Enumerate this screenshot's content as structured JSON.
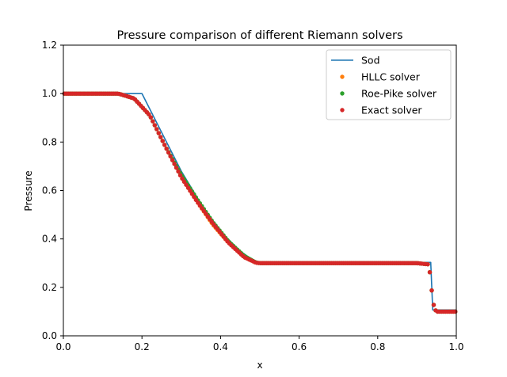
{
  "chart_data": {
    "type": "line",
    "title": "Pressure comparison of different Riemann solvers",
    "xlabel": "x",
    "ylabel": "Pressure",
    "xlim": [
      0.0,
      1.0
    ],
    "ylim": [
      0.0,
      1.2
    ],
    "xticks": [
      "0.0",
      "0.2",
      "0.4",
      "0.6",
      "0.8",
      "1.0"
    ],
    "yticks": [
      "0.0",
      "0.2",
      "0.4",
      "0.6",
      "0.8",
      "1.0",
      "1.2"
    ],
    "grid": false,
    "legend_position": "top-right",
    "series": [
      {
        "name": "Sod",
        "kind": "line",
        "color": "#1f77b4",
        "x": [
          0.0,
          0.2,
          0.25,
          0.3,
          0.35,
          0.4,
          0.45,
          0.49,
          0.935,
          0.935,
          0.94,
          1.0
        ],
        "y": [
          1.0,
          1.0,
          0.84,
          0.68,
          0.545,
          0.43,
          0.35,
          0.303,
          0.303,
          0.3,
          0.107,
          0.107
        ]
      },
      {
        "name": "HLLC solver",
        "kind": "points",
        "color": "#ff7f0e",
        "x": [
          0.0,
          0.14,
          0.18,
          0.22,
          0.26,
          0.3,
          0.34,
          0.38,
          0.42,
          0.46,
          0.49,
          0.5,
          0.6,
          0.7,
          0.8,
          0.9,
          0.93,
          0.935,
          0.94,
          0.945,
          0.95,
          1.0
        ],
        "y": [
          1.0,
          1.0,
          0.98,
          0.91,
          0.78,
          0.655,
          0.555,
          0.46,
          0.385,
          0.325,
          0.302,
          0.3,
          0.3,
          0.3,
          0.3,
          0.3,
          0.295,
          0.23,
          0.145,
          0.11,
          0.1,
          0.1
        ]
      },
      {
        "name": "Roe-Pike solver",
        "kind": "points",
        "color": "#2ca02c",
        "x": [
          0.0,
          0.14,
          0.18,
          0.22,
          0.26,
          0.3,
          0.34,
          0.38,
          0.42,
          0.46,
          0.49,
          0.5,
          0.6,
          0.7,
          0.8,
          0.9,
          0.93,
          0.935,
          0.94,
          0.945,
          0.95,
          1.0
        ],
        "y": [
          1.0,
          1.0,
          0.98,
          0.91,
          0.78,
          0.665,
          0.565,
          0.47,
          0.39,
          0.33,
          0.303,
          0.3,
          0.3,
          0.3,
          0.3,
          0.3,
          0.295,
          0.23,
          0.145,
          0.11,
          0.1,
          0.1
        ]
      },
      {
        "name": "Exact solver",
        "kind": "points",
        "color": "#d62728",
        "x": [
          0.0,
          0.14,
          0.18,
          0.22,
          0.26,
          0.3,
          0.34,
          0.38,
          0.42,
          0.46,
          0.49,
          0.5,
          0.6,
          0.7,
          0.8,
          0.9,
          0.93,
          0.935,
          0.94,
          0.945,
          0.95,
          1.0
        ],
        "y": [
          1.0,
          1.0,
          0.98,
          0.91,
          0.78,
          0.655,
          0.555,
          0.465,
          0.385,
          0.325,
          0.302,
          0.3,
          0.3,
          0.3,
          0.3,
          0.3,
          0.295,
          0.23,
          0.145,
          0.11,
          0.1,
          0.1
        ]
      }
    ]
  }
}
